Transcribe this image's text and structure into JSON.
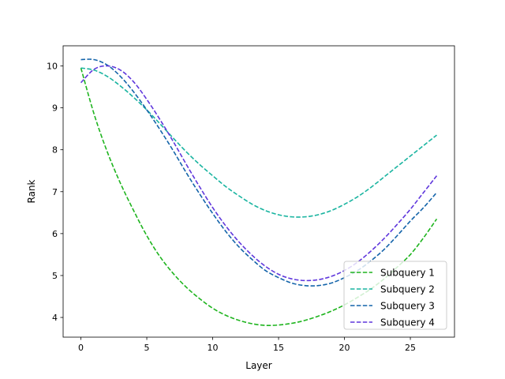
{
  "chart_data": {
    "type": "line",
    "title": "",
    "xlabel": "Layer",
    "ylabel": "Rank",
    "xlim": [
      -1.35,
      28.35
    ],
    "ylim": [
      10.48,
      3.53
    ],
    "y_inverted": true,
    "xticks": [
      0,
      5,
      10,
      15,
      20,
      25
    ],
    "yticks": [
      4,
      5,
      6,
      7,
      8,
      9,
      10
    ],
    "grid": false,
    "legend_position": "lower right",
    "series": [
      {
        "name": "Subquery 1",
        "color": "#1eb41e",
        "style": "dashed",
        "x": [
          0,
          1,
          2,
          3,
          4,
          5,
          6,
          7,
          8,
          9,
          10,
          11,
          12,
          13,
          14,
          15,
          16,
          17,
          18,
          19,
          20,
          21,
          22,
          23,
          24,
          25,
          26,
          27
        ],
        "y": [
          9.95,
          8.85,
          7.95,
          7.2,
          6.55,
          5.95,
          5.45,
          5.05,
          4.72,
          4.45,
          4.22,
          4.05,
          3.93,
          3.85,
          3.81,
          3.82,
          3.86,
          3.93,
          4.03,
          4.15,
          4.3,
          4.48,
          4.68,
          4.92,
          5.2,
          5.5,
          5.9,
          6.35
        ]
      },
      {
        "name": "Subquery 2",
        "color": "#19b4a0",
        "style": "dashed",
        "x": [
          0,
          1,
          2,
          3,
          4,
          5,
          6,
          7,
          8,
          9,
          10,
          11,
          12,
          13,
          14,
          15,
          16,
          17,
          18,
          19,
          20,
          21,
          22,
          23,
          24,
          25,
          26,
          27
        ],
        "y": [
          9.95,
          9.9,
          9.75,
          9.52,
          9.25,
          8.95,
          8.62,
          8.28,
          7.95,
          7.65,
          7.38,
          7.12,
          6.9,
          6.7,
          6.55,
          6.45,
          6.4,
          6.4,
          6.45,
          6.55,
          6.7,
          6.88,
          7.1,
          7.35,
          7.6,
          7.85,
          8.1,
          8.35
        ]
      },
      {
        "name": "Subquery 3",
        "color": "#1464aa",
        "style": "dashed",
        "x": [
          0,
          1,
          2,
          3,
          4,
          5,
          6,
          7,
          8,
          9,
          10,
          11,
          12,
          13,
          14,
          15,
          16,
          17,
          18,
          19,
          20,
          21,
          22,
          23,
          24,
          25,
          26,
          27
        ],
        "y": [
          10.15,
          10.15,
          10.02,
          9.75,
          9.38,
          8.95,
          8.48,
          7.98,
          7.45,
          6.95,
          6.48,
          6.05,
          5.68,
          5.38,
          5.12,
          4.95,
          4.82,
          4.76,
          4.76,
          4.82,
          4.95,
          5.12,
          5.35,
          5.62,
          5.95,
          6.3,
          6.62,
          6.98
        ]
      },
      {
        "name": "Subquery 4",
        "color": "#5f37dc",
        "style": "dashed",
        "x": [
          0,
          1,
          2,
          3,
          4,
          5,
          6,
          7,
          8,
          9,
          10,
          11,
          12,
          13,
          14,
          15,
          16,
          17,
          18,
          19,
          20,
          21,
          22,
          23,
          24,
          25,
          26,
          27
        ],
        "y": [
          9.6,
          9.92,
          10.0,
          9.9,
          9.62,
          9.2,
          8.72,
          8.2,
          7.65,
          7.12,
          6.62,
          6.18,
          5.8,
          5.48,
          5.22,
          5.03,
          4.92,
          4.88,
          4.9,
          4.98,
          5.12,
          5.32,
          5.58,
          5.88,
          6.22,
          6.58,
          6.98,
          7.38
        ]
      }
    ]
  }
}
